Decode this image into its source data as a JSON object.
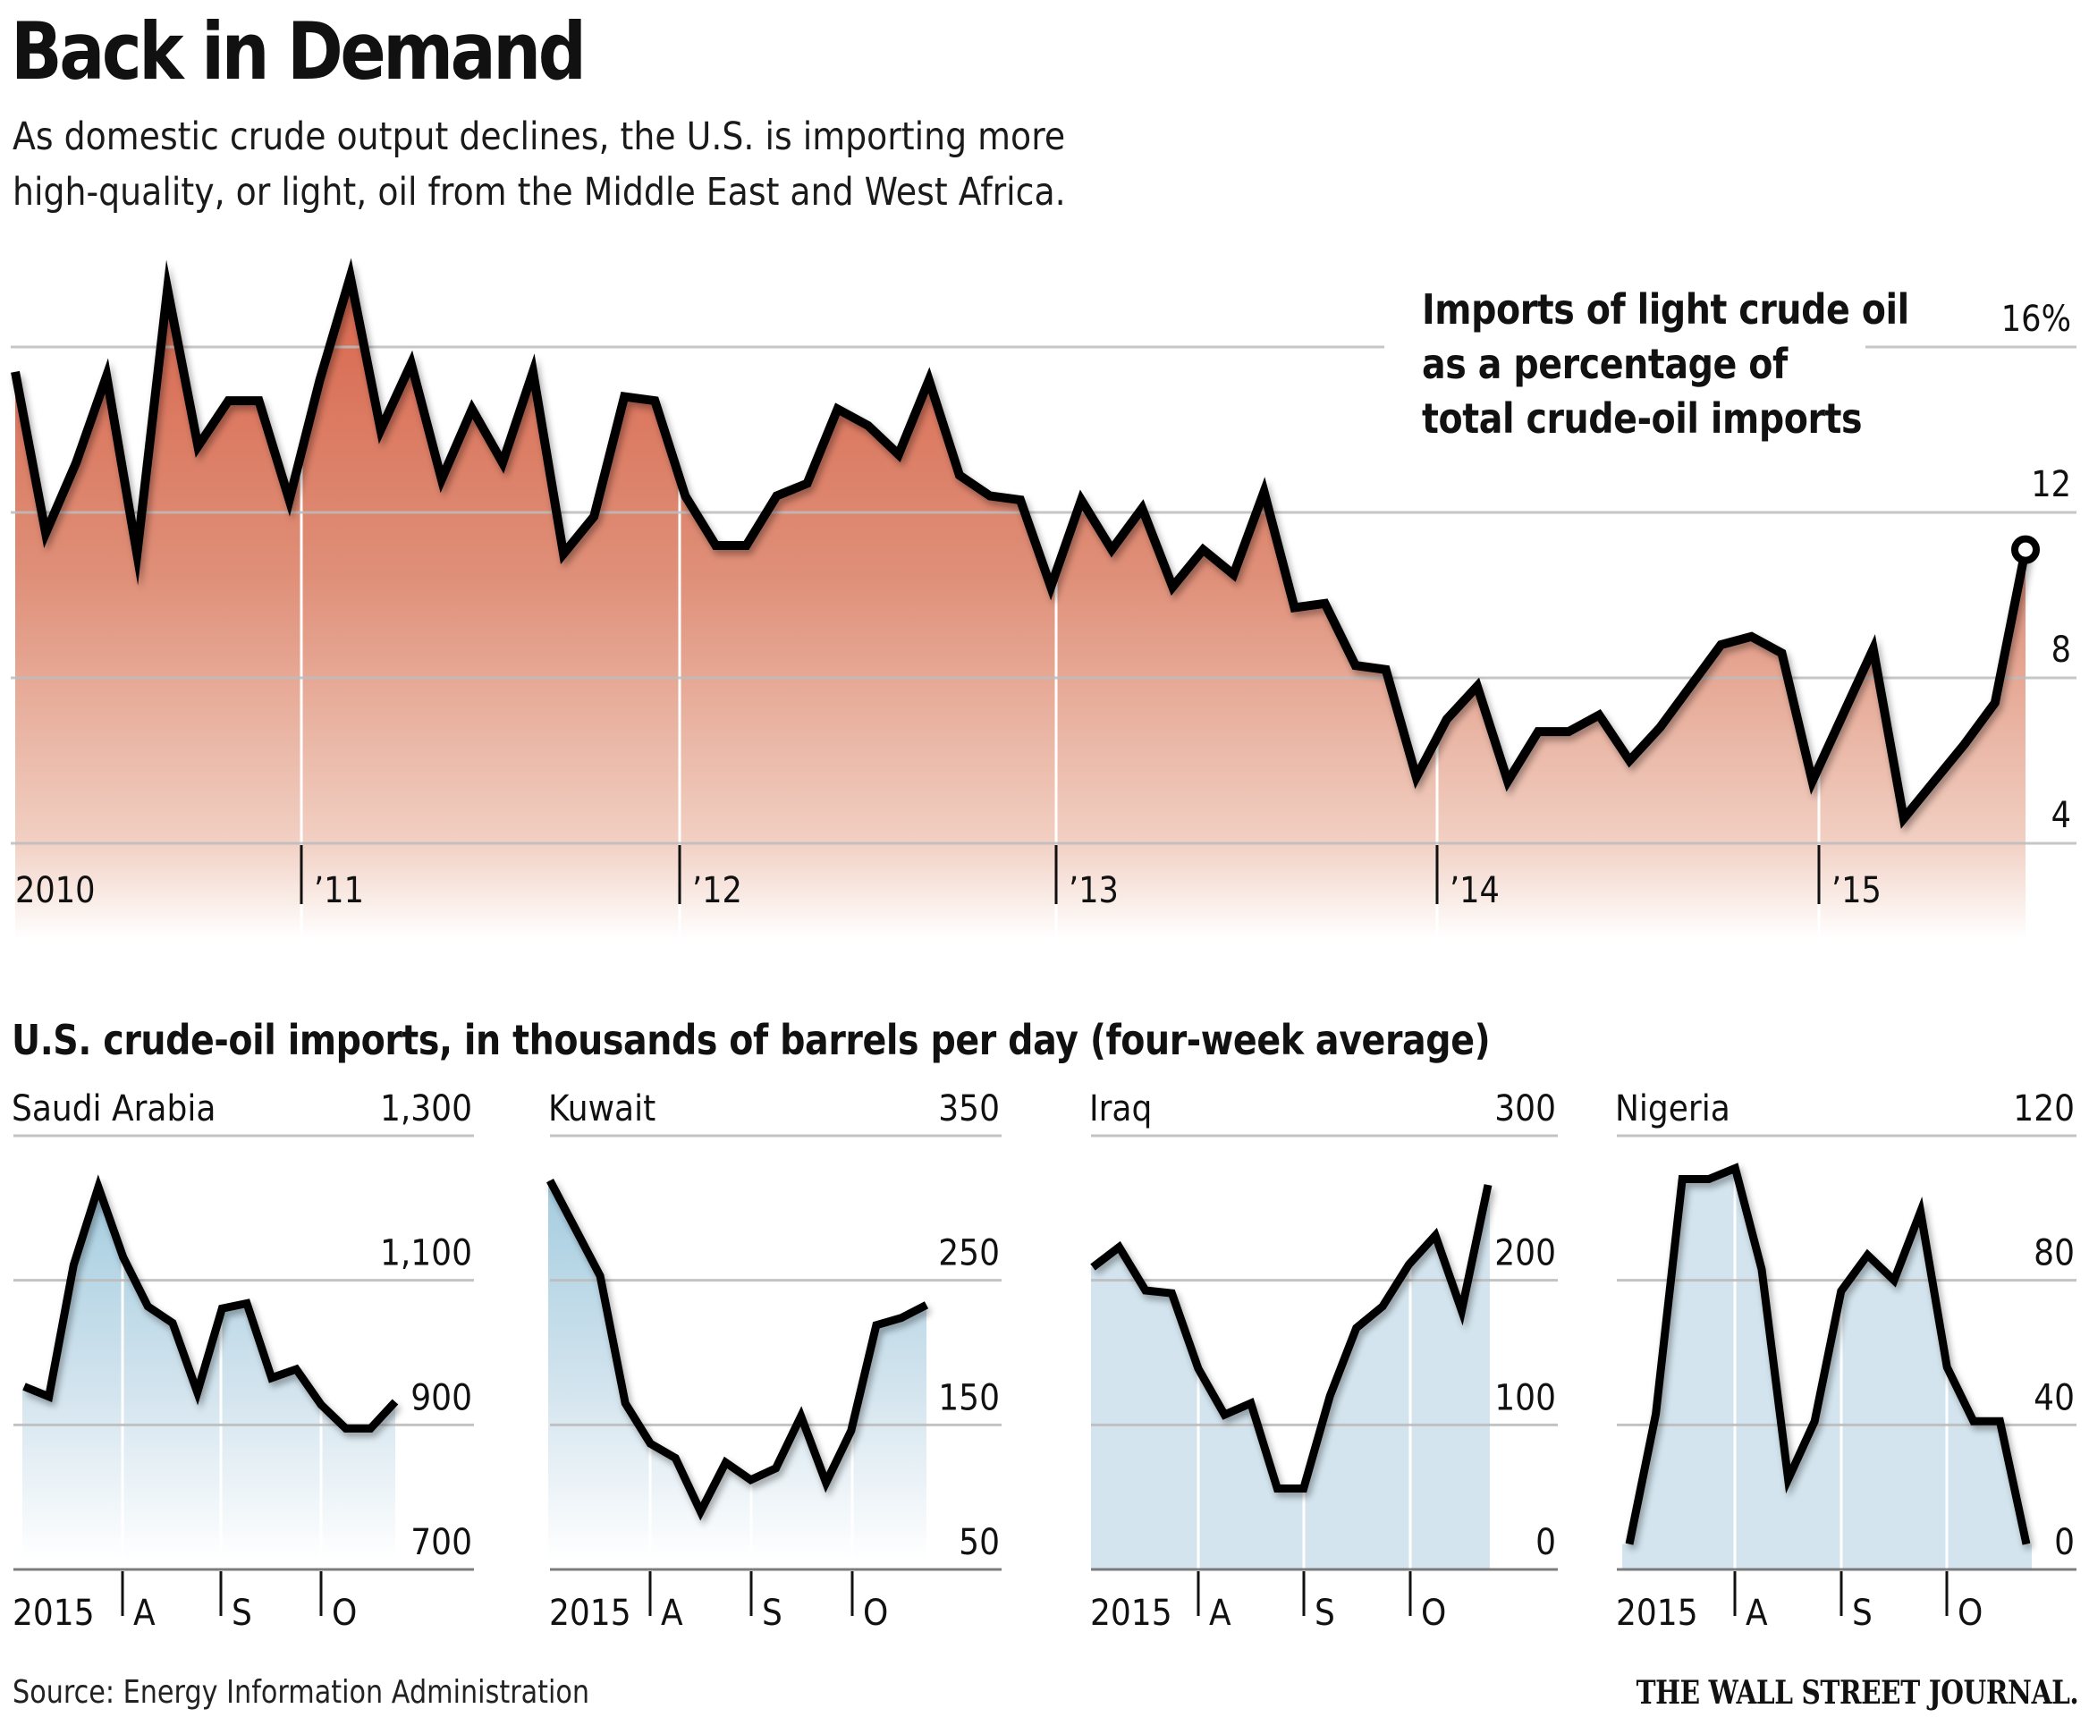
{
  "header": {
    "title": "Back in Demand",
    "subtitle_lines": [
      "As domestic crude output declines, the U.S. is importing more",
      "high-quality, or light, oil from the Middle East and West Africa."
    ]
  },
  "colors": {
    "area_top_red": "#d8705a",
    "area_bottom_red": "#fbeee8",
    "area_blue": "#d3e4ee",
    "area_blue_grad_top": "#a8d0e0",
    "line": "#000000",
    "grid": "#bdbdbd"
  },
  "chart_data": [
    {
      "id": "light-crude-share",
      "type": "area",
      "title": "Imports of light crude oil as a percentage of total crude-oil imports",
      "annotation_lines": [
        "Imports of light crude oil",
        "as a percentage of",
        "total crude-oil imports"
      ],
      "xlabel": "",
      "ylabel": "",
      "x_tick_labels": [
        "2010",
        "’11",
        "’12",
        "’13",
        "’14",
        "’15"
      ],
      "y_ticks": [
        4,
        8,
        12,
        16
      ],
      "y_tick_labels": [
        "4",
        "8",
        "12",
        "16%"
      ],
      "ylim": [
        4,
        16
      ],
      "grid": true,
      "frequency": "monthly",
      "start": "2010",
      "last_point_marker": "open-circle",
      "values": [
        15.4,
        11.5,
        13.2,
        15.3,
        11.0,
        17.4,
        13.6,
        14.7,
        14.7,
        12.3,
        15.2,
        17.7,
        14.0,
        15.6,
        12.8,
        14.5,
        13.2,
        15.4,
        11.0,
        11.9,
        14.8,
        14.7,
        12.4,
        11.2,
        11.2,
        12.4,
        12.7,
        14.5,
        14.1,
        13.4,
        15.2,
        12.9,
        12.4,
        12.3,
        10.2,
        12.3,
        11.1,
        12.1,
        10.2,
        11.1,
        10.5,
        12.5,
        9.7,
        9.8,
        8.3,
        8.2,
        5.6,
        7.0,
        7.8,
        5.5,
        6.7,
        6.7,
        7.1,
        6.0,
        6.8,
        7.8,
        8.8,
        9.0,
        8.6,
        5.5,
        7.1,
        8.7,
        4.6,
        5.5,
        6.4,
        7.4,
        11.1
      ]
    },
    {
      "id": "saudi-arabia",
      "type": "area",
      "title": "Saudi Arabia",
      "section": "U.S. crude-oil imports, in thousands of barrels per day (four-week average)",
      "x_tick_labels": [
        "2015",
        "A",
        "S",
        "O"
      ],
      "y_ticks": [
        700,
        900,
        1100,
        1300
      ],
      "y_tick_labels": [
        "700",
        "900",
        "1,100",
        "1,300"
      ],
      "ylim": [
        700,
        1300
      ],
      "grid": true,
      "frequency": "weekly",
      "values": [
        953,
        939,
        1121,
        1229,
        1132,
        1064,
        1041,
        945,
        1061,
        1068,
        965,
        977,
        928,
        895,
        895,
        932
      ]
    },
    {
      "id": "kuwait",
      "type": "area",
      "title": "Kuwait",
      "x_tick_labels": [
        "2015",
        "A",
        "S",
        "O"
      ],
      "y_ticks": [
        50,
        150,
        250,
        350
      ],
      "y_tick_labels": [
        "50",
        "150",
        "250",
        "350"
      ],
      "ylim": [
        50,
        350
      ],
      "grid": true,
      "frequency": "weekly",
      "values": [
        319,
        286,
        253,
        165,
        137,
        127,
        90,
        124,
        112,
        120,
        156,
        110,
        146,
        219,
        224,
        233
      ]
    },
    {
      "id": "iraq",
      "type": "area",
      "title": "Iraq",
      "x_tick_labels": [
        "2015",
        "A",
        "S",
        "O"
      ],
      "y_ticks": [
        0,
        100,
        200,
        300
      ],
      "y_tick_labels": [
        "0",
        "100",
        "200",
        "300"
      ],
      "ylim": [
        0,
        300
      ],
      "grid": true,
      "frequency": "weekly",
      "values": [
        209,
        223,
        193,
        191,
        139,
        107,
        115,
        56,
        56,
        120,
        167,
        182,
        211,
        231,
        179,
        266
      ]
    },
    {
      "id": "nigeria",
      "type": "area",
      "title": "Nigeria",
      "x_tick_labels": [
        "2015",
        "A",
        "S",
        "O"
      ],
      "y_ticks": [
        0,
        40,
        80,
        120
      ],
      "y_tick_labels": [
        "0",
        "40",
        "80",
        "120"
      ],
      "ylim": [
        0,
        120
      ],
      "grid": true,
      "frequency": "weekly",
      "values": [
        7,
        43,
        108,
        108,
        111,
        83,
        25,
        41,
        77,
        87,
        80,
        99,
        56,
        41,
        41,
        7
      ]
    }
  ],
  "footer": {
    "source": "Source: Energy Information Administration",
    "brand": "THE WALL STREET JOURNAL."
  }
}
